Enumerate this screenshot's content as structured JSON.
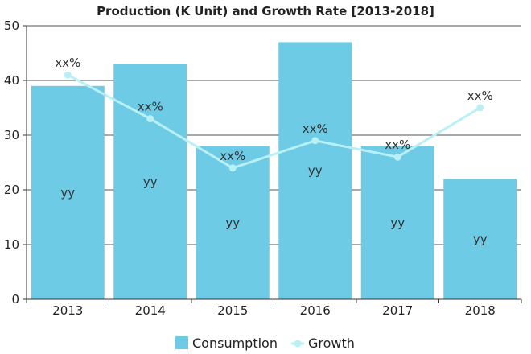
{
  "chart_data": {
    "type": "bar",
    "title": "Production (K Unit) and Growth Rate [2013-2018]",
    "categories": [
      "2013",
      "2014",
      "2015",
      "2016",
      "2017",
      "2018"
    ],
    "ylim": [
      0,
      50
    ],
    "yticks": [
      0,
      10,
      20,
      30,
      40,
      50
    ],
    "grid": true,
    "legend_position": "bottom",
    "series": [
      {
        "name": "Consumption",
        "type": "bar",
        "color": "#6ecbe6",
        "values": [
          39,
          43,
          28,
          47,
          28,
          22
        ],
        "labels": [
          "yy",
          "yy",
          "yy",
          "yy",
          "yy",
          "yy"
        ]
      },
      {
        "name": "Growth",
        "type": "line",
        "color": "#b8f0f6",
        "values": [
          41,
          33,
          24,
          29,
          26,
          35
        ],
        "labels": [
          "xx%",
          "xx%",
          "xx%",
          "xx%",
          "xx%",
          "xx%"
        ]
      }
    ]
  }
}
